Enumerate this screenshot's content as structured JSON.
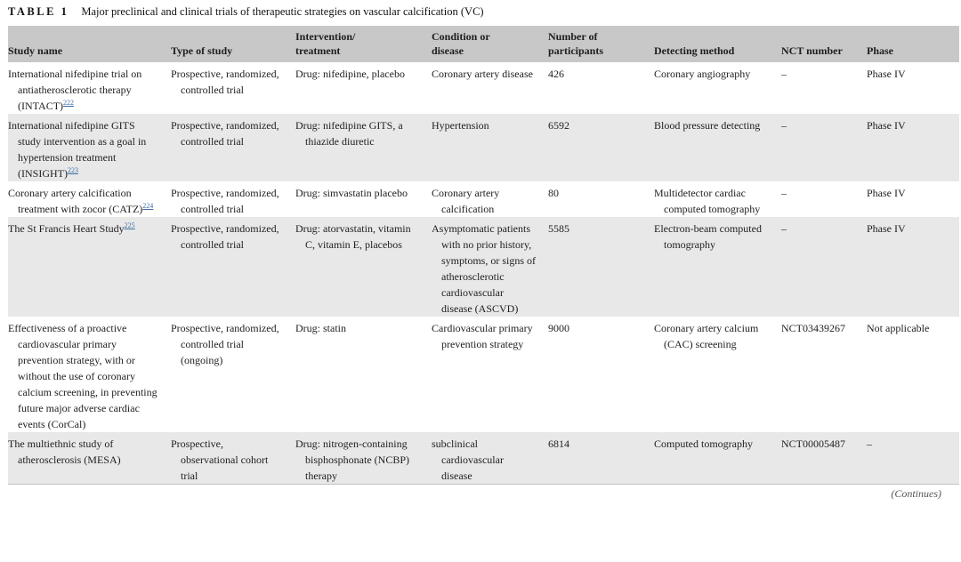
{
  "colors": {
    "header_bg": "#c8c8c8",
    "alt_row_bg": "#e8e8e8",
    "citation_link": "#3a6ea5"
  },
  "table": {
    "label": "TABLE 1",
    "caption": "Major preclinical and clinical trials of therapeutic strategies on vascular calcification (VC)",
    "columns": [
      "Study name",
      "Type of study",
      "Intervention/\ntreatment",
      "Condition or\ndisease",
      "Number of\nparticipants",
      "Detecting method",
      "NCT number",
      "Phase"
    ],
    "rows": [
      {
        "study": "International nifedipine trial on antiatherosclerotic therapy (INTACT)",
        "ref": "222",
        "type": "Prospective, randomized, controlled trial",
        "intervention": "Drug: nifedipine, placebo",
        "condition": "Coronary artery disease",
        "participants": "426",
        "detecting": "Coronary angiography",
        "nct": "–",
        "phase": "Phase IV"
      },
      {
        "study": "International nifedipine GITS study intervention as a goal in hypertension treatment (INSIGHT)",
        "ref": "223",
        "type": "Prospective, randomized, controlled trial",
        "intervention": "Drug: nifedipine GITS, a thiazide diuretic",
        "condition": "Hypertension",
        "participants": "6592",
        "detecting": "Blood pressure detecting",
        "nct": "–",
        "phase": "Phase IV"
      },
      {
        "study": "Coronary artery calcification treatment with zocor (CATZ)",
        "ref": "224",
        "type": "Prospective, randomized, controlled trial",
        "intervention": "Drug: simvastatin placebo",
        "condition": "Coronary artery calcification",
        "participants": "80",
        "detecting": "Multidetector cardiac computed tomography",
        "nct": "–",
        "phase": "Phase IV"
      },
      {
        "study": "The St Francis Heart Study",
        "ref": "225",
        "type": "Prospective, randomized, controlled trial",
        "intervention": "Drug: atorvastatin, vitamin C, vitamin E, placebos",
        "condition": "Asymptomatic patients with no prior history, symptoms, or signs of atherosclerotic cardiovascular disease (ASCVD)",
        "participants": "5585",
        "detecting": "Electron-beam computed tomography",
        "nct": "–",
        "phase": "Phase IV"
      },
      {
        "study": "Effectiveness of a proactive cardiovascular primary prevention strategy, with or without the use of coronary calcium screening, in preventing future major adverse cardiac events (CorCal)",
        "type": "Prospective, randomized, controlled trial (ongoing)",
        "intervention": "Drug: statin",
        "condition": "Cardiovascular primary prevention strategy",
        "participants": "9000",
        "detecting": "Coronary artery calcium (CAC) screening",
        "nct": "NCT03439267",
        "phase": "Not applicable"
      },
      {
        "study": "The multiethnic study of atherosclerosis (MESA)",
        "type": "Prospective, observational cohort trial",
        "intervention": "Drug: nitrogen-containing bisphosphonate (NCBP) therapy",
        "condition": "subclinical cardiovascular disease",
        "participants": "6814",
        "detecting": "Computed tomography",
        "nct": "NCT00005487",
        "phase": "–"
      }
    ],
    "continues_note": "(Continues)"
  }
}
